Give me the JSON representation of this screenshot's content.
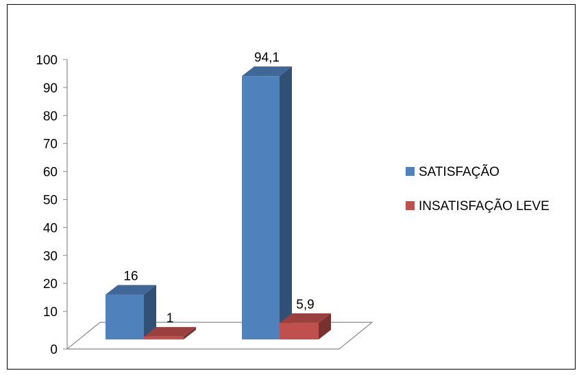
{
  "chart_data": {
    "type": "bar",
    "three_d": true,
    "categories": [
      "",
      ""
    ],
    "series": [
      {
        "name": "SATISFAÇÃO",
        "values": [
          16,
          94.1
        ],
        "labels": [
          "16",
          "94,1"
        ],
        "color": "#4F81BD"
      },
      {
        "name": "INSATISFAÇÃO LEVE",
        "values": [
          1,
          5.9
        ],
        "labels": [
          "1",
          "5,9"
        ],
        "color": "#C0504D"
      }
    ],
    "y_ticks": [
      "0",
      "10",
      "20",
      "30",
      "40",
      "50",
      "60",
      "70",
      "80",
      "90",
      "100"
    ],
    "ylim": [
      0,
      100
    ],
    "grid": false,
    "legend_position": "right"
  }
}
